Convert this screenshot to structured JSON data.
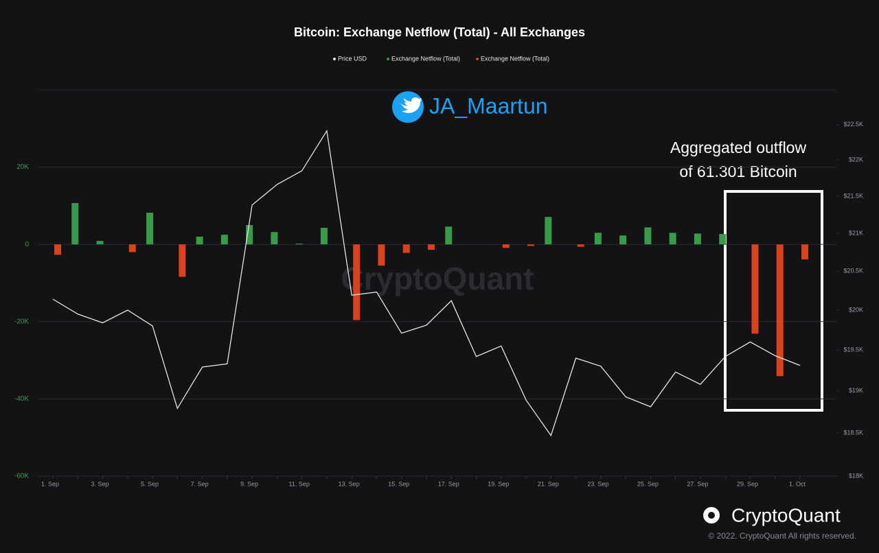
{
  "chart_data": {
    "type": "bar",
    "title": "Bitcoin: Exchange Netflow (Total) - All Exchanges",
    "handle": "JA_Maartun",
    "watermark": "CryptoQuant",
    "annotation": [
      "Aggregated outflow",
      "of 61.301 Bitcoin"
    ],
    "brand": "CryptoQuant",
    "copyright": "© 2022. CryptoQuant All rights reserved.",
    "categories": [
      "1. Sep",
      null,
      "3. Sep",
      null,
      "5. Sep",
      null,
      "7. Sep",
      null,
      "9. Sep",
      null,
      "11. Sep",
      null,
      "13. Sep",
      null,
      "15. Sep",
      null,
      "17. Sep",
      null,
      "19. Sep",
      null,
      "21. Sep",
      null,
      "23. Sep",
      null,
      "25. Sep",
      null,
      "27. Sep",
      null,
      "29. Sep",
      null,
      "1. Oct"
    ],
    "series": [
      {
        "name": "Price USD",
        "type": "line",
        "axis": "y2",
        "color": "#e6e6e6",
        "values": [
          20140,
          19950,
          19840,
          20000,
          19800,
          18790,
          19290,
          19330,
          21380,
          21660,
          21850,
          22410,
          20190,
          20230,
          19710,
          19810,
          20120,
          19420,
          19550,
          18890,
          18470,
          19400,
          19300,
          18930,
          18810,
          19230,
          19080,
          19420,
          19600,
          19430,
          19310
        ]
      },
      {
        "name": "Exchange Netflow (Total)",
        "type": "bar",
        "color": "#3a9a4c",
        "values": [
          null,
          10700,
          900,
          null,
          8200,
          null,
          2000,
          2500,
          5000,
          3200,
          200,
          4300,
          null,
          null,
          null,
          null,
          4600,
          null,
          null,
          null,
          7100,
          null,
          3000,
          2300,
          4400,
          3000,
          2800,
          2700,
          null,
          null,
          null
        ]
      },
      {
        "name": "Exchange Netflow (Total)",
        "type": "bar",
        "color": "#d8431e",
        "values": [
          -2700,
          null,
          null,
          -2000,
          null,
          -8400,
          null,
          null,
          null,
          null,
          null,
          null,
          -19600,
          -5500,
          -2200,
          -1400,
          null,
          null,
          -900,
          -400,
          null,
          -600,
          null,
          null,
          null,
          null,
          null,
          null,
          -23100,
          -34100,
          -3900
        ]
      }
    ],
    "ylim": [
      -60000,
      40000
    ],
    "yticks": [
      {
        "value": -60000,
        "label": "-60K"
      },
      {
        "value": -40000,
        "label": "-40K"
      },
      {
        "value": -20000,
        "label": "-20K"
      },
      0,
      {
        "value": 20000,
        "label": "20K"
      }
    ],
    "y2lim": [
      18000,
      23000
    ],
    "y2log": true,
    "y2ticks": [
      {
        "value": 18000,
        "label": "$18K"
      },
      {
        "value": 18500,
        "label": "$18.5K"
      },
      {
        "value": 19000,
        "label": "$19K"
      },
      {
        "value": 19500,
        "label": "$19.5K"
      },
      {
        "value": 20000,
        "label": "$20K"
      },
      {
        "value": 20500,
        "label": "$20.5K"
      },
      {
        "value": 21000,
        "label": "$21K"
      },
      {
        "value": 21500,
        "label": "$21.5K"
      },
      {
        "value": 22000,
        "label": "$22K"
      },
      {
        "value": 22500,
        "label": "$22.5K"
      }
    ],
    "grid": true
  }
}
